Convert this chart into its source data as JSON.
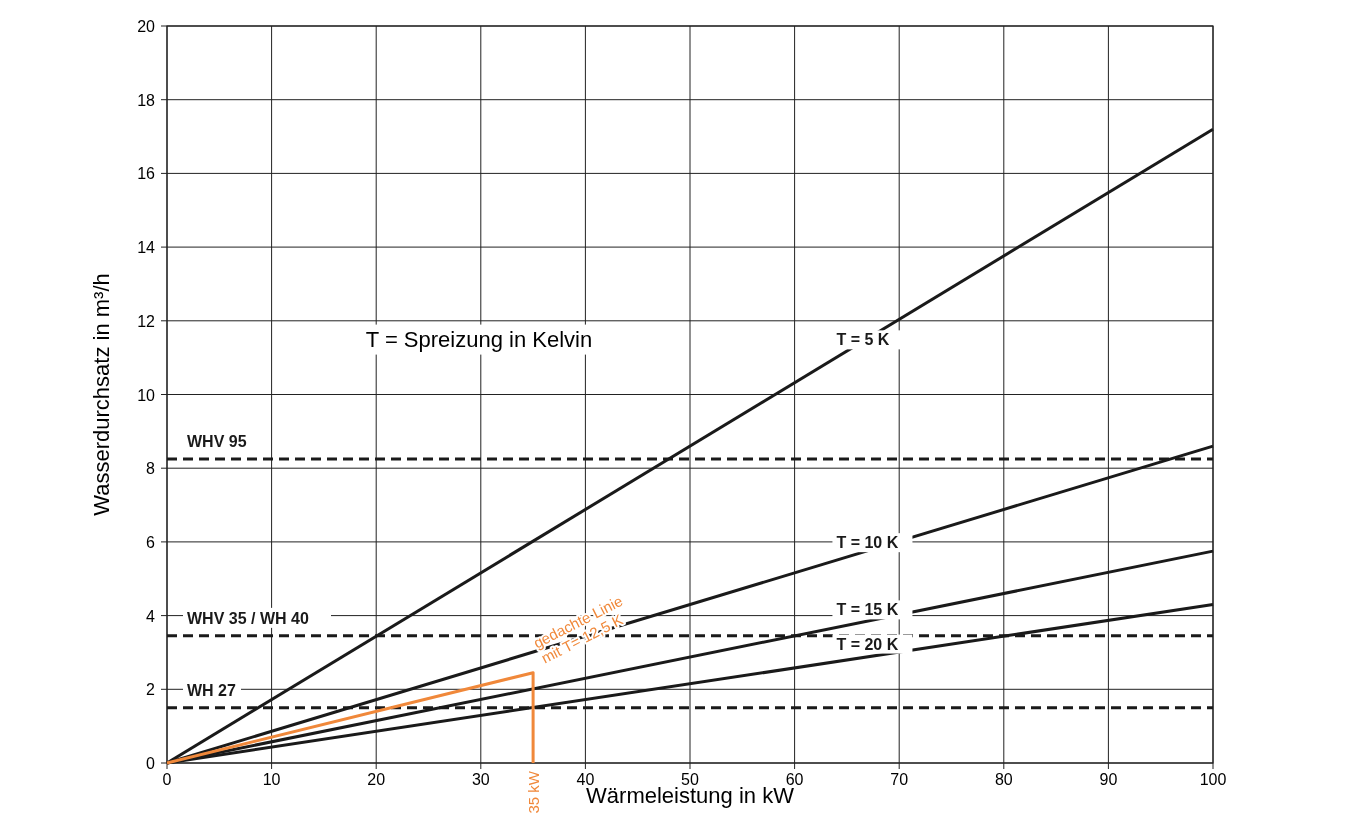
{
  "chart_data": {
    "type": "line",
    "xlabel": "Wärmeleistung in kW",
    "ylabel": "Wasserdurchsatz in m³/h",
    "xlim": [
      0,
      100
    ],
    "xticks": [
      0,
      10,
      20,
      30,
      40,
      50,
      60,
      70,
      80,
      90,
      100
    ],
    "ylim": [
      0,
      20
    ],
    "yticks": [
      0,
      2,
      4,
      6,
      8,
      10,
      12,
      14,
      16,
      18,
      20
    ],
    "grid": true,
    "marker": "none",
    "line_style": "solid",
    "series": [
      {
        "name": "T = 5 K",
        "color": "#1a1a1a",
        "x": [
          0,
          100
        ],
        "values": [
          0,
          17.2
        ]
      },
      {
        "name": "T = 10 K",
        "color": "#1a1a1a",
        "x": [
          0,
          100
        ],
        "values": [
          0,
          8.6
        ]
      },
      {
        "name": "T = 15 K",
        "color": "#1a1a1a",
        "x": [
          0,
          100
        ],
        "values": [
          0,
          5.75
        ]
      },
      {
        "name": "T = 20 K",
        "color": "#1a1a1a",
        "x": [
          0,
          100
        ],
        "values": [
          0,
          4.3
        ]
      },
      {
        "name": "gedachte Linie mit T= 12,5 K",
        "color": "#f0883a",
        "x": [
          0,
          35,
          35
        ],
        "values": [
          0,
          2.45,
          0
        ]
      }
    ],
    "ref_lines": [
      {
        "axis": "y",
        "value": 8.25,
        "label": "WHV 95",
        "line_style": "dashed",
        "color": "#1a1a1a"
      },
      {
        "axis": "y",
        "value": 3.45,
        "label": "WHV 35 / WH 40",
        "line_style": "dashed",
        "color": "#1a1a1a"
      },
      {
        "axis": "y",
        "value": 1.5,
        "label": "WH 27",
        "line_style": "dashed",
        "color": "#1a1a1a"
      }
    ],
    "annotations": [
      "T = Spreizung in Kelvin",
      {
        "text": "35 kW",
        "x": 35,
        "y": 0
      }
    ]
  }
}
